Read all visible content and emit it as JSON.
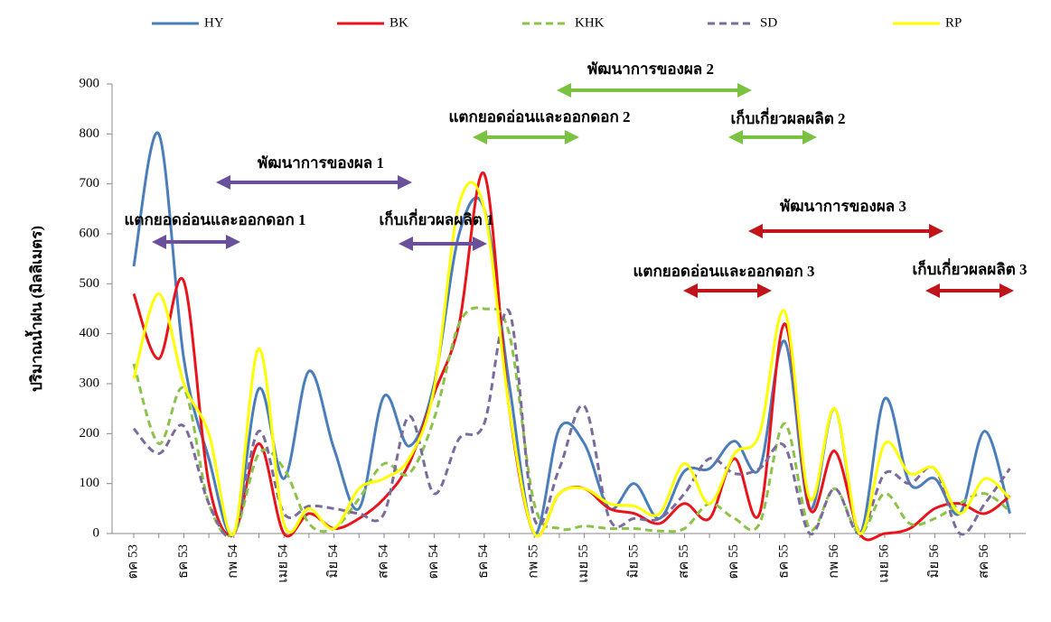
{
  "chart_data": {
    "type": "line",
    "y_label": "ปริมาณน้ำฝน (มิลลิเมตร)",
    "categories": [
      "ตค 53",
      null,
      "ธค 53",
      null,
      "กพ 54",
      null,
      "เมย 54",
      null,
      "มิย 54",
      null,
      "สค 54",
      null,
      "ตค 54",
      null,
      "ธค 54",
      null,
      "กพ 55",
      null,
      "เมย 55",
      null,
      "มิย 55",
      null,
      "สค 55",
      null,
      "ตค 55",
      null,
      "ธค 55",
      null,
      "กพ 56",
      null,
      "เมย 56",
      null,
      "มิย 56",
      null,
      "สค 56",
      null
    ],
    "series": [
      {
        "name": "HY",
        "color": "#4a7ebb",
        "dash": false,
        "values": [
          535,
          800,
          350,
          150,
          0,
          290,
          110,
          325,
          170,
          50,
          275,
          175,
          300,
          600,
          650,
          300,
          0,
          210,
          180,
          50,
          100,
          30,
          125,
          130,
          185,
          130,
          385,
          50,
          250,
          0,
          270,
          100,
          110,
          40,
          205,
          40
        ]
      },
      {
        "name": "BK",
        "color": "#e8141b",
        "dash": false,
        "values": [
          480,
          350,
          505,
          100,
          0,
          180,
          0,
          40,
          10,
          30,
          70,
          140,
          280,
          420,
          720,
          250,
          0,
          80,
          90,
          50,
          40,
          20,
          60,
          30,
          150,
          40,
          420,
          50,
          165,
          0,
          0,
          10,
          50,
          60,
          40,
          75
        ]
      },
      {
        "name": "KHK",
        "color": "#8bc34a",
        "dash": true,
        "values": [
          340,
          180,
          290,
          60,
          0,
          160,
          130,
          20,
          10,
          70,
          140,
          120,
          230,
          420,
          450,
          400,
          60,
          10,
          15,
          10,
          10,
          5,
          10,
          60,
          30,
          20,
          220,
          10,
          90,
          0,
          80,
          20,
          30,
          60,
          80,
          45
        ]
      },
      {
        "name": "SD",
        "color": "#7b6a9c",
        "dash": true,
        "values": [
          210,
          160,
          215,
          60,
          0,
          205,
          40,
          55,
          50,
          40,
          40,
          235,
          80,
          190,
          220,
          445,
          30,
          130,
          255,
          30,
          30,
          30,
          80,
          150,
          120,
          130,
          175,
          0,
          90,
          0,
          120,
          100,
          130,
          0,
          60,
          130
        ]
      },
      {
        "name": "RP",
        "color": "#ffff00",
        "dash": false,
        "values": [
          310,
          480,
          300,
          200,
          0,
          370,
          20,
          50,
          10,
          90,
          110,
          150,
          290,
          660,
          650,
          250,
          0,
          80,
          90,
          60,
          55,
          40,
          140,
          60,
          160,
          200,
          445,
          70,
          250,
          0,
          180,
          120,
          130,
          40,
          110,
          70
        ]
      }
    ],
    "ylim": [
      0,
      900
    ],
    "yticks": [
      0,
      100,
      200,
      300,
      400,
      500,
      600,
      700,
      800,
      900
    ],
    "annotations": [
      "แตกยอดอ่อนและออกดอก 1",
      "พัฒนาการของผล 1",
      "เก็บเกี่ยวผลผลิต 1",
      "แตกยอดอ่อนและออกดอก 2",
      "พัฒนาการของผล 2",
      "เก็บเกี่ยวผลผลิต 2",
      "แตกยอดอ่อนและออกดอก 3",
      "พัฒนาการของผล 3",
      "เก็บเกี่ยวผลผลิต 3"
    ]
  }
}
